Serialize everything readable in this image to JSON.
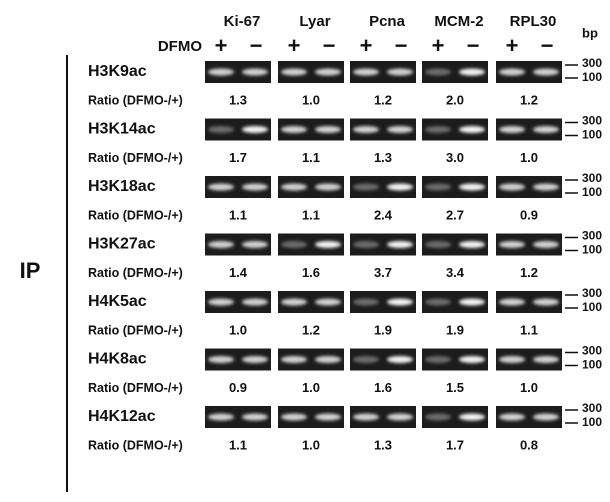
{
  "genes": [
    "Ki-67",
    "Lyar",
    "Pcna",
    "MCM-2",
    "RPL30"
  ],
  "bp_label": "bp",
  "dfmo_label": "DFMO",
  "dfmo_signs": [
    "+",
    "−"
  ],
  "ip_label": "IP",
  "ratio_label": "Ratio (DFMO-/+)",
  "size_markers": [
    "300",
    "100"
  ],
  "highlight_color": "#e3201b",
  "rows": [
    {
      "mark": "H3K9ac",
      "ratios": [
        "1.3",
        "1.0",
        "1.2",
        "2.0",
        "1.2"
      ],
      "highlighted": [
        false,
        false,
        false,
        true,
        false
      ]
    },
    {
      "mark": "H3K14ac",
      "ratios": [
        "1.7",
        "1.1",
        "1.3",
        "3.0",
        "1.0"
      ],
      "highlighted": [
        true,
        false,
        false,
        true,
        false
      ]
    },
    {
      "mark": "H3K18ac",
      "ratios": [
        "1.1",
        "1.1",
        "2.4",
        "2.7",
        "0.9"
      ],
      "highlighted": [
        false,
        false,
        true,
        true,
        false
      ]
    },
    {
      "mark": "H3K27ac",
      "ratios": [
        "1.4",
        "1.6",
        "3.7",
        "3.4",
        "1.2"
      ],
      "highlighted": [
        false,
        true,
        true,
        true,
        false
      ]
    },
    {
      "mark": "H4K5ac",
      "ratios": [
        "1.0",
        "1.2",
        "1.9",
        "1.9",
        "1.1"
      ],
      "highlighted": [
        false,
        false,
        true,
        true,
        false
      ]
    },
    {
      "mark": "H4K8ac",
      "ratios": [
        "0.9",
        "1.0",
        "1.6",
        "1.5",
        "1.0"
      ],
      "highlighted": [
        false,
        false,
        true,
        true,
        false
      ]
    },
    {
      "mark": "H4K12ac",
      "ratios": [
        "1.1",
        "1.0",
        "1.3",
        "1.7",
        "0.8"
      ],
      "highlighted": [
        false,
        false,
        false,
        true,
        false
      ]
    }
  ]
}
